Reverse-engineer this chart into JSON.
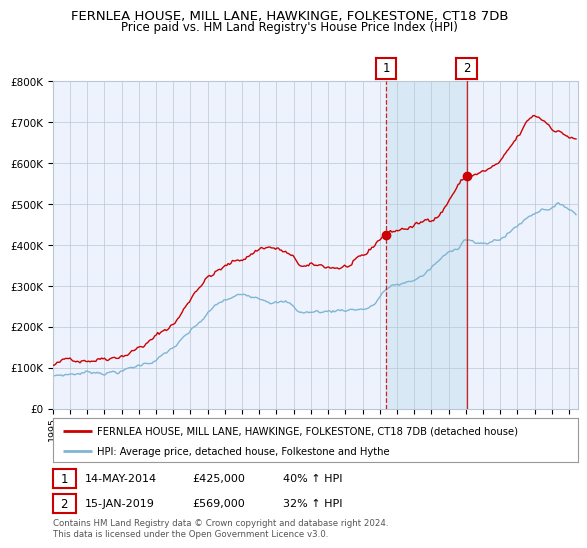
{
  "title": "FERNLEA HOUSE, MILL LANE, HAWKINGE, FOLKESTONE, CT18 7DB",
  "subtitle": "Price paid vs. HM Land Registry's House Price Index (HPI)",
  "legend_red": "FERNLEA HOUSE, MILL LANE, HAWKINGE, FOLKESTONE, CT18 7DB (detached house)",
  "legend_blue": "HPI: Average price, detached house, Folkestone and Hythe",
  "annotation1_label": "1",
  "annotation1_date": "14-MAY-2014",
  "annotation1_price": "£425,000",
  "annotation1_hpi": "40% ↑ HPI",
  "annotation2_label": "2",
  "annotation2_date": "15-JAN-2019",
  "annotation2_price": "£569,000",
  "annotation2_hpi": "32% ↑ HPI",
  "footer": "Contains HM Land Registry data © Crown copyright and database right 2024.\nThis data is licensed under the Open Government Licence v3.0.",
  "sale1_date_num": 2014.37,
  "sale1_value": 425000,
  "sale2_date_num": 2019.04,
  "sale2_value": 569000,
  "ylim": [
    0,
    800000
  ],
  "xlim_start": 1995.0,
  "xlim_end": 2025.5,
  "red_color": "#cc0000",
  "blue_color": "#7eb6d4",
  "background_color": "#eef2fc",
  "shaded_region_color": "#d8e8f4",
  "grid_color": "#b8c8d8",
  "title_fontsize": 9.5,
  "subtitle_fontsize": 8.5
}
